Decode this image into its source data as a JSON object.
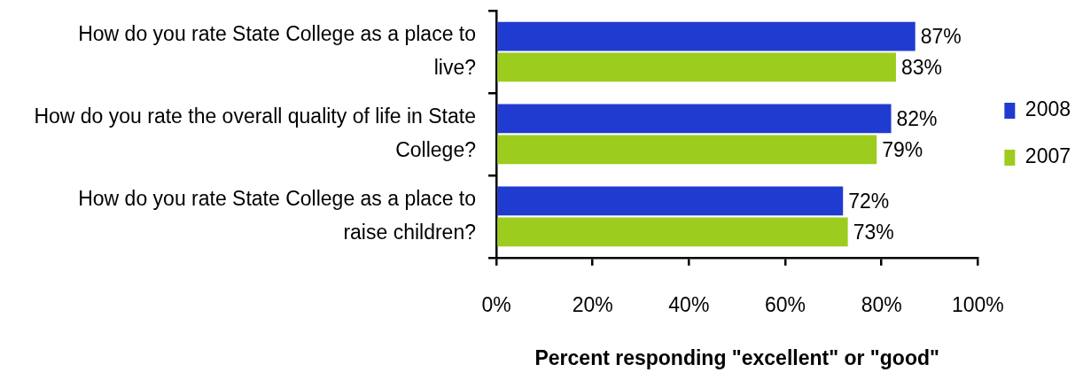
{
  "chart_data": {
    "type": "bar",
    "orientation": "horizontal",
    "categories": [
      "How do you rate State College as a place to live?",
      "How do you rate the overall quality of life in State College?",
      "How do you rate State College as a place to raise children?"
    ],
    "series": [
      {
        "name": "2008",
        "color": "#1f3bd0",
        "values": [
          87,
          82,
          72
        ],
        "value_labels": [
          "87%",
          "82%",
          "72%"
        ]
      },
      {
        "name": "2007",
        "color": "#9ccc1e",
        "values": [
          83,
          79,
          73
        ],
        "value_labels": [
          "83%",
          "79%",
          "73%"
        ]
      }
    ],
    "xlim": [
      0,
      100
    ],
    "xticks": [
      {
        "value": 0,
        "label": "0%"
      },
      {
        "value": 20,
        "label": "20%"
      },
      {
        "value": 40,
        "label": "40%"
      },
      {
        "value": 60,
        "label": "60%"
      },
      {
        "value": 80,
        "label": "80%"
      },
      {
        "value": 100,
        "label": "100%"
      }
    ],
    "xlabel": "Percent responding \"excellent\" or \"good\"",
    "legend": "right"
  }
}
